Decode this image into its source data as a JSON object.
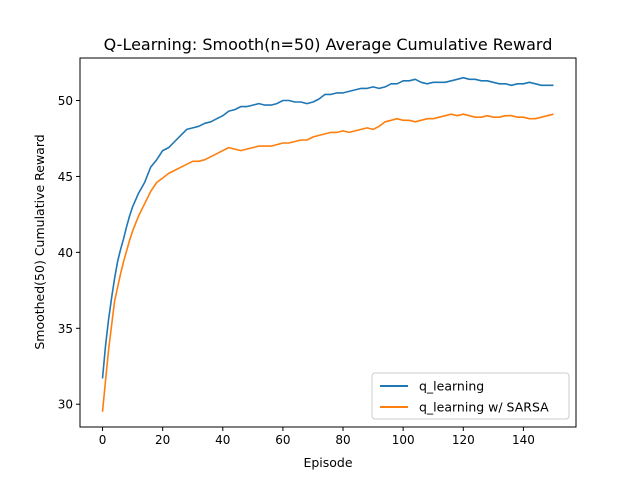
{
  "chart_data": {
    "type": "line",
    "title": "Q-Learning: Smooth(n=50) Average Cumulative Reward",
    "xlabel": "Episode",
    "ylabel": "Smoothed(50) Cumulative Reward",
    "xlim": [
      -7.5,
      157.5
    ],
    "ylim": [
      28.5,
      52.8
    ],
    "xticks": [
      0,
      20,
      40,
      60,
      80,
      100,
      120,
      140
    ],
    "yticks": [
      30,
      35,
      40,
      45,
      50
    ],
    "grid": false,
    "legend_position": "lower-right",
    "series": [
      {
        "name": "q_learning",
        "color": "#1f77b4",
        "x": [
          0,
          1,
          2,
          3,
          4,
          5,
          6,
          7,
          8,
          9,
          10,
          12,
          14,
          16,
          18,
          20,
          22,
          24,
          26,
          28,
          30,
          32,
          34,
          36,
          38,
          40,
          42,
          44,
          46,
          48,
          50,
          52,
          54,
          56,
          58,
          60,
          62,
          64,
          66,
          68,
          70,
          72,
          74,
          76,
          78,
          80,
          82,
          84,
          86,
          88,
          90,
          92,
          94,
          96,
          98,
          100,
          102,
          104,
          106,
          108,
          110,
          112,
          114,
          116,
          118,
          120,
          122,
          124,
          126,
          128,
          130,
          132,
          134,
          136,
          138,
          140,
          142,
          144,
          146,
          148,
          150
        ],
        "y": [
          31.7,
          33.9,
          35.6,
          37.0,
          38.3,
          39.4,
          40.2,
          40.9,
          41.7,
          42.4,
          43.0,
          43.9,
          44.6,
          45.6,
          46.1,
          46.7,
          46.9,
          47.3,
          47.7,
          48.1,
          48.2,
          48.3,
          48.5,
          48.6,
          48.8,
          49.0,
          49.3,
          49.4,
          49.6,
          49.6,
          49.7,
          49.8,
          49.7,
          49.7,
          49.8,
          50.0,
          50.0,
          49.9,
          49.9,
          49.8,
          49.9,
          50.1,
          50.4,
          50.4,
          50.5,
          50.5,
          50.6,
          50.7,
          50.8,
          50.8,
          50.9,
          50.8,
          50.9,
          51.1,
          51.1,
          51.3,
          51.3,
          51.4,
          51.2,
          51.1,
          51.2,
          51.2,
          51.2,
          51.3,
          51.4,
          51.5,
          51.4,
          51.4,
          51.3,
          51.3,
          51.2,
          51.1,
          51.1,
          51.0,
          51.1,
          51.1,
          51.2,
          51.1,
          51.0,
          51.0,
          51.0
        ]
      },
      {
        "name": "q_learning w/ SARSA",
        "color": "#ff7f0e",
        "x": [
          0,
          1,
          2,
          3,
          4,
          5,
          6,
          7,
          8,
          9,
          10,
          12,
          14,
          16,
          18,
          20,
          22,
          24,
          26,
          28,
          30,
          32,
          34,
          36,
          38,
          40,
          42,
          44,
          46,
          48,
          50,
          52,
          54,
          56,
          58,
          60,
          62,
          64,
          66,
          68,
          70,
          72,
          74,
          76,
          78,
          80,
          82,
          84,
          86,
          88,
          90,
          92,
          94,
          96,
          98,
          100,
          102,
          104,
          106,
          108,
          110,
          112,
          114,
          116,
          118,
          120,
          122,
          124,
          126,
          128,
          130,
          132,
          134,
          136,
          138,
          140,
          142,
          144,
          146,
          148,
          150
        ],
        "y": [
          29.5,
          31.6,
          33.6,
          35.2,
          36.8,
          37.7,
          38.6,
          39.4,
          40.1,
          40.8,
          41.4,
          42.4,
          43.2,
          44.0,
          44.6,
          44.9,
          45.2,
          45.4,
          45.6,
          45.8,
          46.0,
          46.0,
          46.1,
          46.3,
          46.5,
          46.7,
          46.9,
          46.8,
          46.7,
          46.8,
          46.9,
          47.0,
          47.0,
          47.0,
          47.1,
          47.2,
          47.2,
          47.3,
          47.4,
          47.4,
          47.6,
          47.7,
          47.8,
          47.9,
          47.9,
          48.0,
          47.9,
          48.0,
          48.1,
          48.2,
          48.1,
          48.3,
          48.6,
          48.7,
          48.8,
          48.7,
          48.7,
          48.6,
          48.7,
          48.8,
          48.8,
          48.9,
          49.0,
          49.1,
          49.0,
          49.1,
          49.0,
          48.9,
          48.9,
          49.0,
          48.9,
          48.9,
          49.0,
          49.0,
          48.9,
          48.9,
          48.8,
          48.8,
          48.9,
          49.0,
          49.1
        ]
      }
    ]
  }
}
